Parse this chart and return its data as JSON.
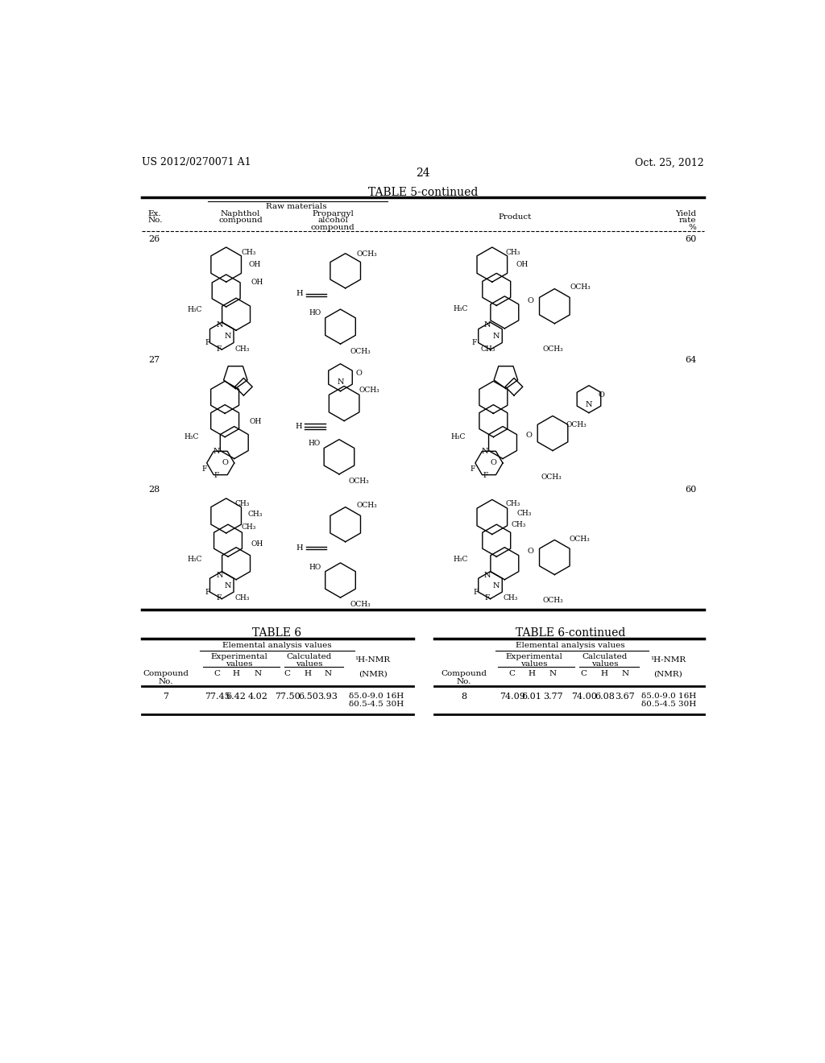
{
  "header_left": "US 2012/0270071 A1",
  "header_right": "Oct. 25, 2012",
  "page_number": "24",
  "background_color": "#ffffff",
  "text_color": "#000000",
  "table5_title": "TABLE 5-continued",
  "table5_raw_materials": "Raw materials",
  "table6_title": "TABLE 6",
  "table6cont_title": "TABLE 6-continued",
  "table6_elemental": "Elemental analysis values",
  "table6_data": [
    {
      "no": "7",
      "exp_c": "77.45",
      "exp_h": "6.42",
      "exp_n": "4.02",
      "cal_c": "77.50",
      "cal_h": "6.50",
      "cal_n": "3.93",
      "nmr1": "δ5.0-9.0 16H",
      "nmr2": "δ0.5-4.5 30H"
    }
  ],
  "table6cont_data": [
    {
      "no": "8",
      "exp_c": "74.09",
      "exp_h": "6.01",
      "exp_n": "3.77",
      "cal_c": "74.00",
      "cal_h": "6.08",
      "cal_n": "3.67",
      "nmr1": "δ5.0-9.0 16H",
      "nmr2": "δ0.5-4.5 30H"
    }
  ]
}
